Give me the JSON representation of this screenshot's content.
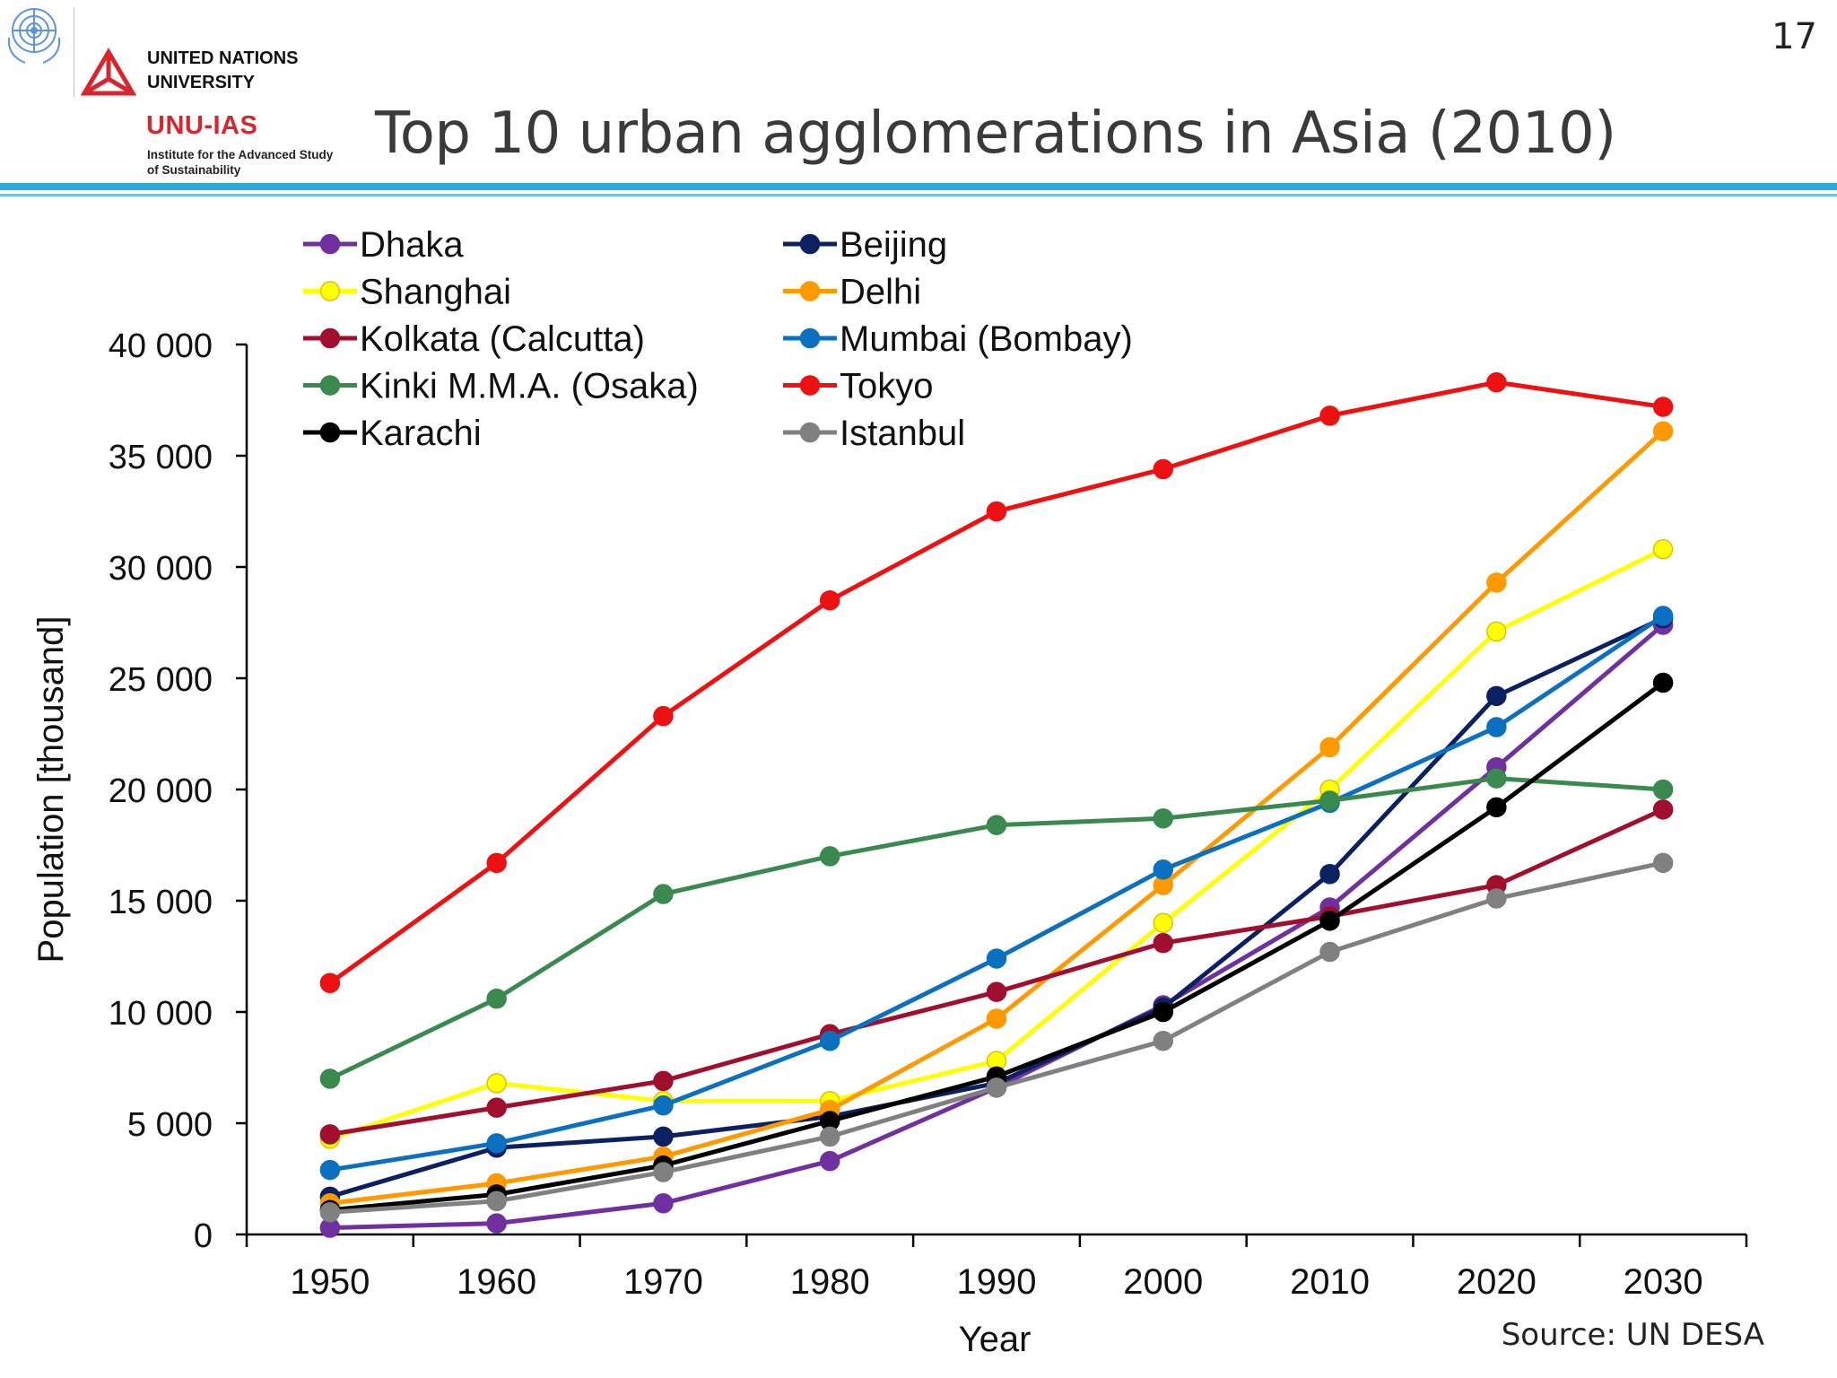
{
  "header": {
    "org_line1": "UNITED NATIONS",
    "org_line2": "UNIVERSITY",
    "unit": "UNU-IAS",
    "institute_line1": "Institute for the Advanced Study",
    "institute_line2": "of Sustainability",
    "title": "Top 10 urban agglomerations in Asia (2010)",
    "page_number": "17",
    "rule_color": "#2fa8e0",
    "brand_red": "#d7262e"
  },
  "footer": {
    "source": "Source: UN DESA"
  },
  "chart_data": {
    "type": "line",
    "title": "",
    "xlabel": "Year",
    "ylabel": "Population [thousand]",
    "x": [
      1950,
      1960,
      1970,
      1980,
      1990,
      2000,
      2010,
      2020,
      2030
    ],
    "xlim": [
      1945,
      2035
    ],
    "ylim": [
      0,
      40000
    ],
    "yticks": [
      0,
      5000,
      10000,
      15000,
      20000,
      25000,
      30000,
      35000,
      40000
    ],
    "ytick_labels": [
      "0",
      "5 000",
      "10 000",
      "15 000",
      "20 000",
      "25 000",
      "30 000",
      "35 000",
      "40 000"
    ],
    "grid": false,
    "legend_position": "top-left",
    "series": [
      {
        "name": "Dhaka",
        "color": "#7030a0",
        "values": [
          300,
          500,
          1400,
          3300,
          6600,
          10300,
          14700,
          21000,
          27400
        ]
      },
      {
        "name": "Beijing",
        "color": "#0c2162",
        "values": [
          1700,
          3900,
          4400,
          5300,
          6800,
          10200,
          16200,
          24200,
          27700
        ]
      },
      {
        "name": "Shanghai",
        "color": "#ffff00",
        "values": [
          4300,
          6800,
          6000,
          6000,
          7800,
          14000,
          20000,
          27100,
          30800
        ]
      },
      {
        "name": "Delhi",
        "color": "#ff9900",
        "values": [
          1400,
          2300,
          3500,
          5600,
          9700,
          15700,
          21900,
          29300,
          36100
        ]
      },
      {
        "name": "Kolkata (Calcutta)",
        "color": "#a0102e",
        "values": [
          4500,
          5700,
          6900,
          9000,
          10900,
          13100,
          14300,
          15700,
          19100
        ]
      },
      {
        "name": "Mumbai (Bombay)",
        "color": "#0b70c0",
        "values": [
          2900,
          4100,
          5800,
          8700,
          12400,
          16400,
          19400,
          22800,
          27800
        ]
      },
      {
        "name": "Kinki M.M.A. (Osaka)",
        "color": "#3a8a4f",
        "values": [
          7000,
          10600,
          15300,
          17000,
          18400,
          18700,
          19500,
          20500,
          20000
        ]
      },
      {
        "name": "Tokyo",
        "color": "#ee1111",
        "values": [
          11300,
          16700,
          23300,
          28500,
          32500,
          34400,
          36800,
          38300,
          37200
        ]
      },
      {
        "name": "Karachi",
        "color": "#000000",
        "values": [
          1100,
          1800,
          3100,
          5100,
          7100,
          10000,
          14100,
          19200,
          24800
        ]
      },
      {
        "name": "Istanbul",
        "color": "#808080",
        "values": [
          1000,
          1500,
          2800,
          4400,
          6600,
          8700,
          12700,
          15100,
          16700
        ]
      }
    ]
  }
}
